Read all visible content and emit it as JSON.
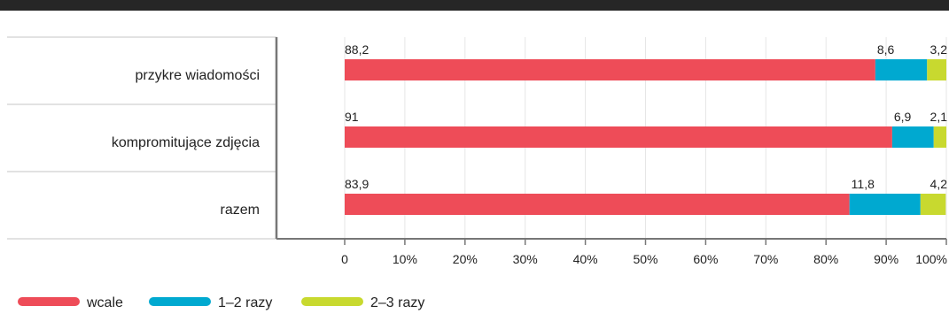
{
  "chart_data": {
    "type": "bar",
    "orientation": "horizontal",
    "stacked": true,
    "categories": [
      "przykre wiadomości",
      "kompromitujące zdjęcia",
      "razem"
    ],
    "series": [
      {
        "name": "wcale",
        "color": "#ee4c58",
        "values": [
          88.2,
          91,
          83.9
        ],
        "labels": [
          "88,2",
          "91",
          "83,9"
        ]
      },
      {
        "name": "1–2 razy",
        "color": "#00a9d0",
        "values": [
          8.6,
          6.9,
          11.8
        ],
        "labels": [
          "8,6",
          "6,9",
          "11,8"
        ]
      },
      {
        "name": "2–3 razy",
        "color": "#c8d92f",
        "values": [
          3.2,
          2.1,
          4.2
        ],
        "labels": [
          "3,2",
          "2,1",
          "4,2"
        ]
      }
    ],
    "xlim": [
      0,
      100
    ],
    "xticks": [
      "0",
      "10%",
      "20%",
      "30%",
      "40%",
      "50%",
      "60%",
      "70%",
      "80%",
      "90%",
      "100%"
    ],
    "grid": "vertical",
    "legend_position": "bottom-left",
    "title": "",
    "xlabel": "",
    "ylabel": ""
  }
}
